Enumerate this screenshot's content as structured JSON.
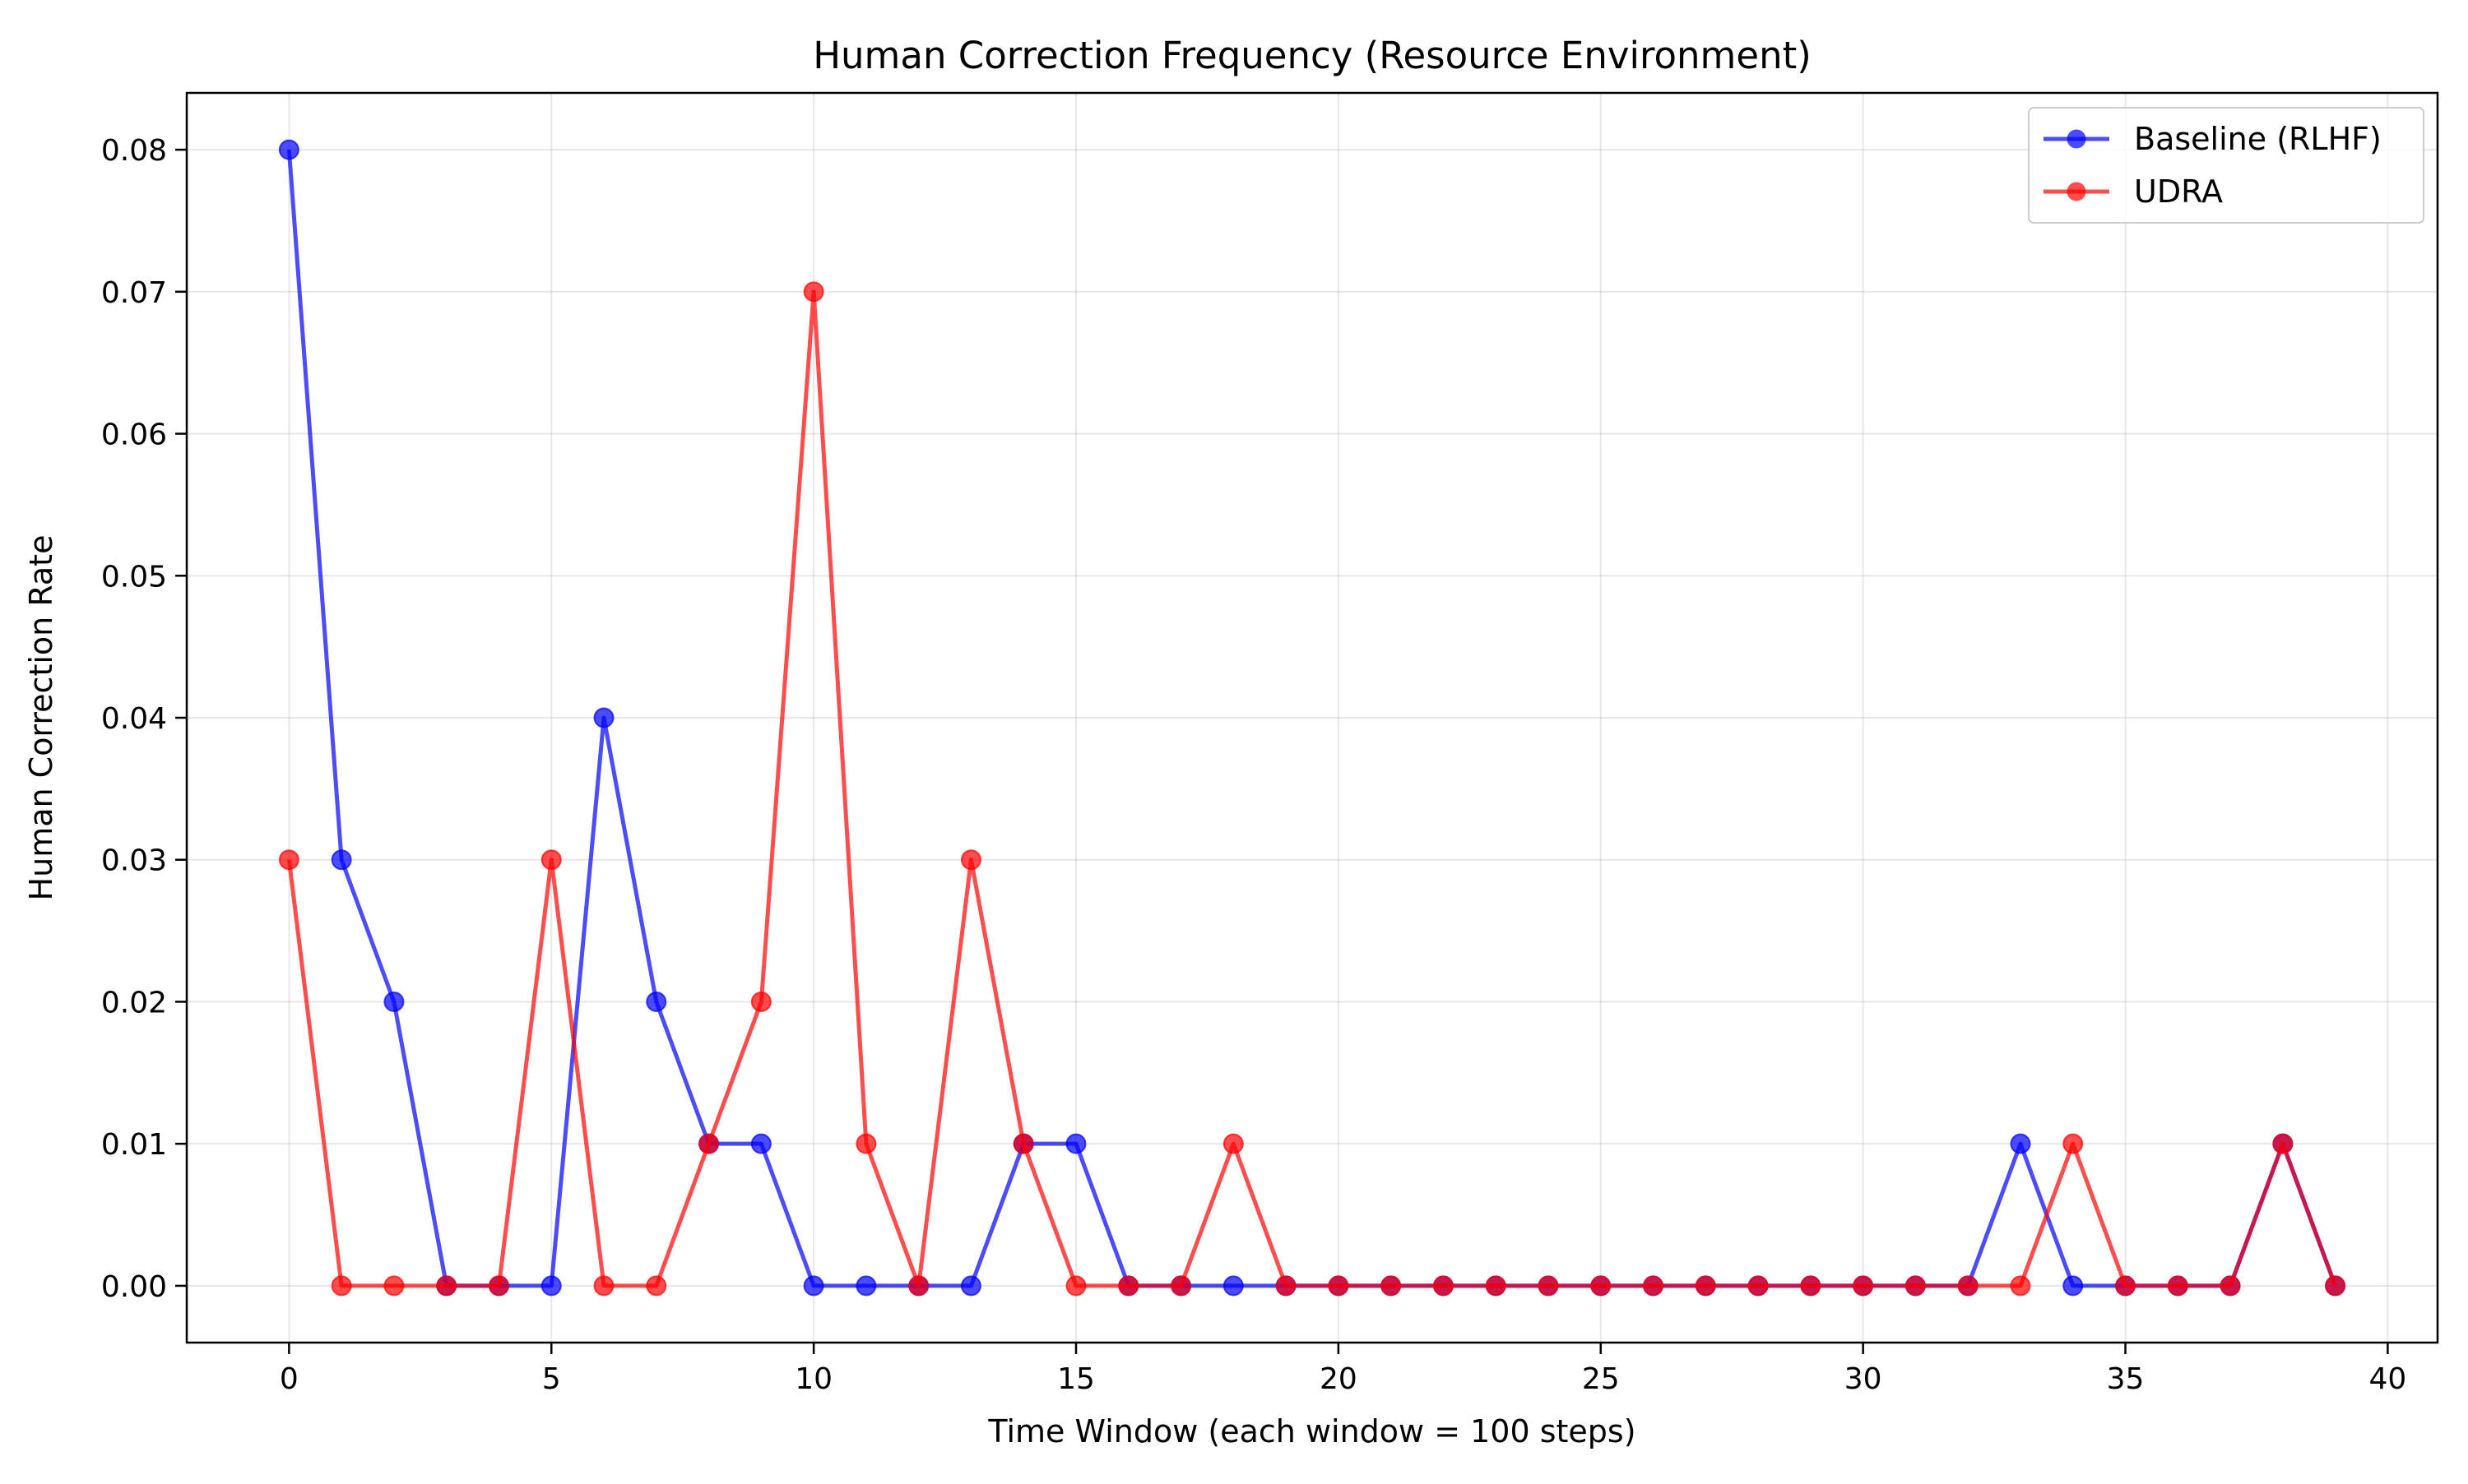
{
  "chart_data": {
    "type": "line",
    "title": "Human Correction Frequency (Resource Environment)",
    "xlabel": "Time Window (each window = 100 steps)",
    "ylabel": "Human Correction Rate",
    "xlim": [
      -1.95,
      40.95
    ],
    "ylim": [
      -0.004,
      0.084
    ],
    "xticks": [
      0,
      5,
      10,
      15,
      20,
      25,
      30,
      35,
      40
    ],
    "xtick_labels": [
      "0",
      "5",
      "10",
      "15",
      "20",
      "25",
      "30",
      "35",
      "40"
    ],
    "yticks": [
      0.0,
      0.01,
      0.02,
      0.03,
      0.04,
      0.05,
      0.06,
      0.07,
      0.08
    ],
    "ytick_labels": [
      "0.00",
      "0.01",
      "0.02",
      "0.03",
      "0.04",
      "0.05",
      "0.06",
      "0.07",
      "0.08"
    ],
    "grid": true,
    "legend_position": "top-right",
    "x": [
      0,
      1,
      2,
      3,
      4,
      5,
      6,
      7,
      8,
      9,
      10,
      11,
      12,
      13,
      14,
      15,
      16,
      17,
      18,
      19,
      20,
      21,
      22,
      23,
      24,
      25,
      26,
      27,
      28,
      29,
      30,
      31,
      32,
      33,
      34,
      35,
      36,
      37,
      38,
      39
    ],
    "series": [
      {
        "name": "Baseline (RLHF)",
        "color": "#0000ff",
        "values": [
          0.08,
          0.03,
          0.02,
          0.0,
          0.0,
          0.0,
          0.04,
          0.02,
          0.01,
          0.01,
          0.0,
          0.0,
          0.0,
          0.0,
          0.01,
          0.01,
          0.0,
          0.0,
          0.0,
          0.0,
          0.0,
          0.0,
          0.0,
          0.0,
          0.0,
          0.0,
          0.0,
          0.0,
          0.0,
          0.0,
          0.0,
          0.0,
          0.0,
          0.01,
          0.0,
          0.0,
          0.0,
          0.0,
          0.01,
          0.0
        ]
      },
      {
        "name": "UDRA",
        "color": "#ff0000",
        "values": [
          0.03,
          0.0,
          0.0,
          0.0,
          0.0,
          0.03,
          0.0,
          0.0,
          0.01,
          0.02,
          0.07,
          0.01,
          0.0,
          0.03,
          0.01,
          0.0,
          0.0,
          0.0,
          0.01,
          0.0,
          0.0,
          0.0,
          0.0,
          0.0,
          0.0,
          0.0,
          0.0,
          0.0,
          0.0,
          0.0,
          0.0,
          0.0,
          0.0,
          0.0,
          0.01,
          0.0,
          0.0,
          0.0,
          0.01,
          0.0
        ]
      }
    ]
  }
}
